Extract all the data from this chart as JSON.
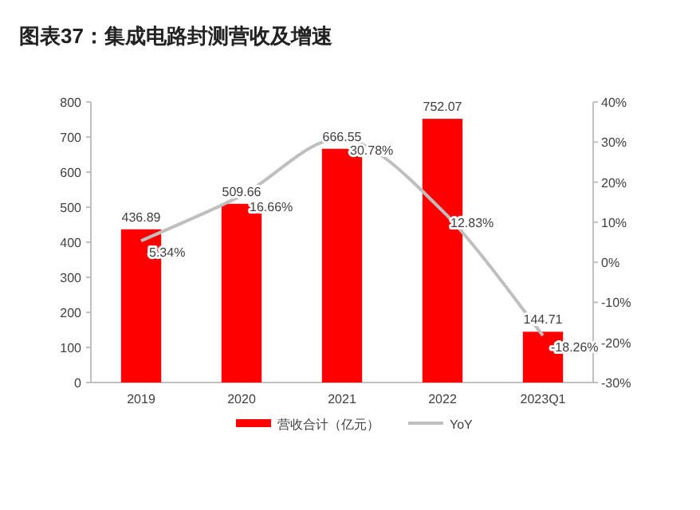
{
  "chart_data": {
    "type": "bar",
    "title": "图表37：集成电路封测营收及增速",
    "categories": [
      "2019",
      "2020",
      "2021",
      "2022",
      "2023Q1"
    ],
    "series": [
      {
        "name": "营收合计（亿元）",
        "color": "#ff0000",
        "values": [
          436.89,
          509.66,
          666.55,
          752.07,
          144.71
        ],
        "value_labels": [
          "436.89",
          "509.66",
          "666.55",
          "752.07",
          "144.71"
        ]
      },
      {
        "name": "YoY",
        "type": "line",
        "axis": "y2",
        "color": "#bfbfbf",
        "values": [
          5.34,
          16.66,
          30.78,
          12.83,
          -18.26
        ],
        "value_labels": [
          "5.34%",
          "16.66%",
          "30.78%",
          "12.83%",
          "-18.26%"
        ]
      }
    ],
    "ylim": [
      0,
      800
    ],
    "yticks": [
      0,
      100,
      200,
      300,
      400,
      500,
      600,
      700,
      800
    ],
    "y2lim": [
      -30,
      40
    ],
    "y2ticks": [
      {
        "value": -30,
        "label": "-30%"
      },
      {
        "value": -20,
        "label": "-20%"
      },
      {
        "value": -10,
        "label": "-10%"
      },
      {
        "value": 0,
        "label": "0%"
      },
      {
        "value": 10,
        "label": "10%"
      },
      {
        "value": 20,
        "label": "20%"
      },
      {
        "value": 30,
        "label": "30%"
      },
      {
        "value": 40,
        "label": "40%"
      }
    ],
    "grid": false,
    "legend": "bottom",
    "marker": "none",
    "line_style": "solid"
  }
}
